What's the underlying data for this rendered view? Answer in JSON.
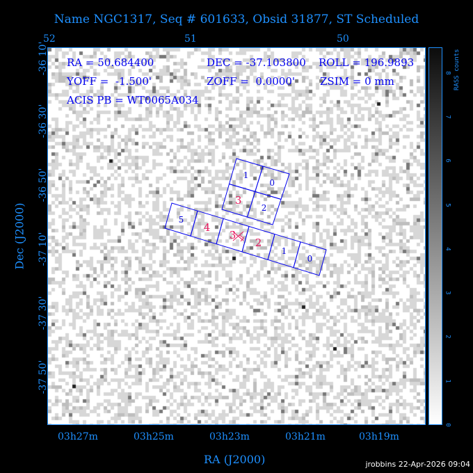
{
  "title": "Name NGC1317, Seq # 601633, Obsid 31877, ST Scheduled",
  "info": {
    "ra": "RA = 50.684400",
    "dec": "DEC = -37.103800",
    "roll": "ROLL = 196.9893",
    "yoff": "YOFF =  -1.500'",
    "zoff": "ZOFF =  0.0000'",
    "zsim": "ZSIM = 0 mm",
    "pb": "ACIS PB = WT0065A034"
  },
  "top_axis": [
    "52",
    "51",
    "50"
  ],
  "x_axis": {
    "ticks": [
      "03h27m",
      "03h25m",
      "03h23m",
      "03h21m",
      "03h19m"
    ],
    "label": "RA (J2000)"
  },
  "y_axis": {
    "ticks": [
      "-36 10'",
      "-36 30'",
      "-36 50'",
      "-37 10'",
      "-37 30'",
      "-37 50'"
    ],
    "label": "Dec (J2000)"
  },
  "colorbar": {
    "label": "RASS counts",
    "ticks": [
      "0",
      "1",
      "2",
      "3",
      "4",
      "5",
      "6",
      "7",
      "8"
    ],
    "min": 0,
    "max": 8
  },
  "acis_i": {
    "chips": [
      "1",
      "0",
      "3",
      "2"
    ],
    "active": [
      false,
      false,
      true,
      false
    ]
  },
  "acis_s": {
    "chips": [
      "5",
      "4",
      "3",
      "2",
      "1",
      "0"
    ],
    "active": [
      false,
      true,
      true,
      true,
      false,
      false
    ]
  },
  "footer": "jrobbins 22-Apr-2026 09:04",
  "colors": {
    "axis": "#1e90ff",
    "info": "#0000ee",
    "active_chip": "#e8175d",
    "chip": "#0000dd"
  }
}
